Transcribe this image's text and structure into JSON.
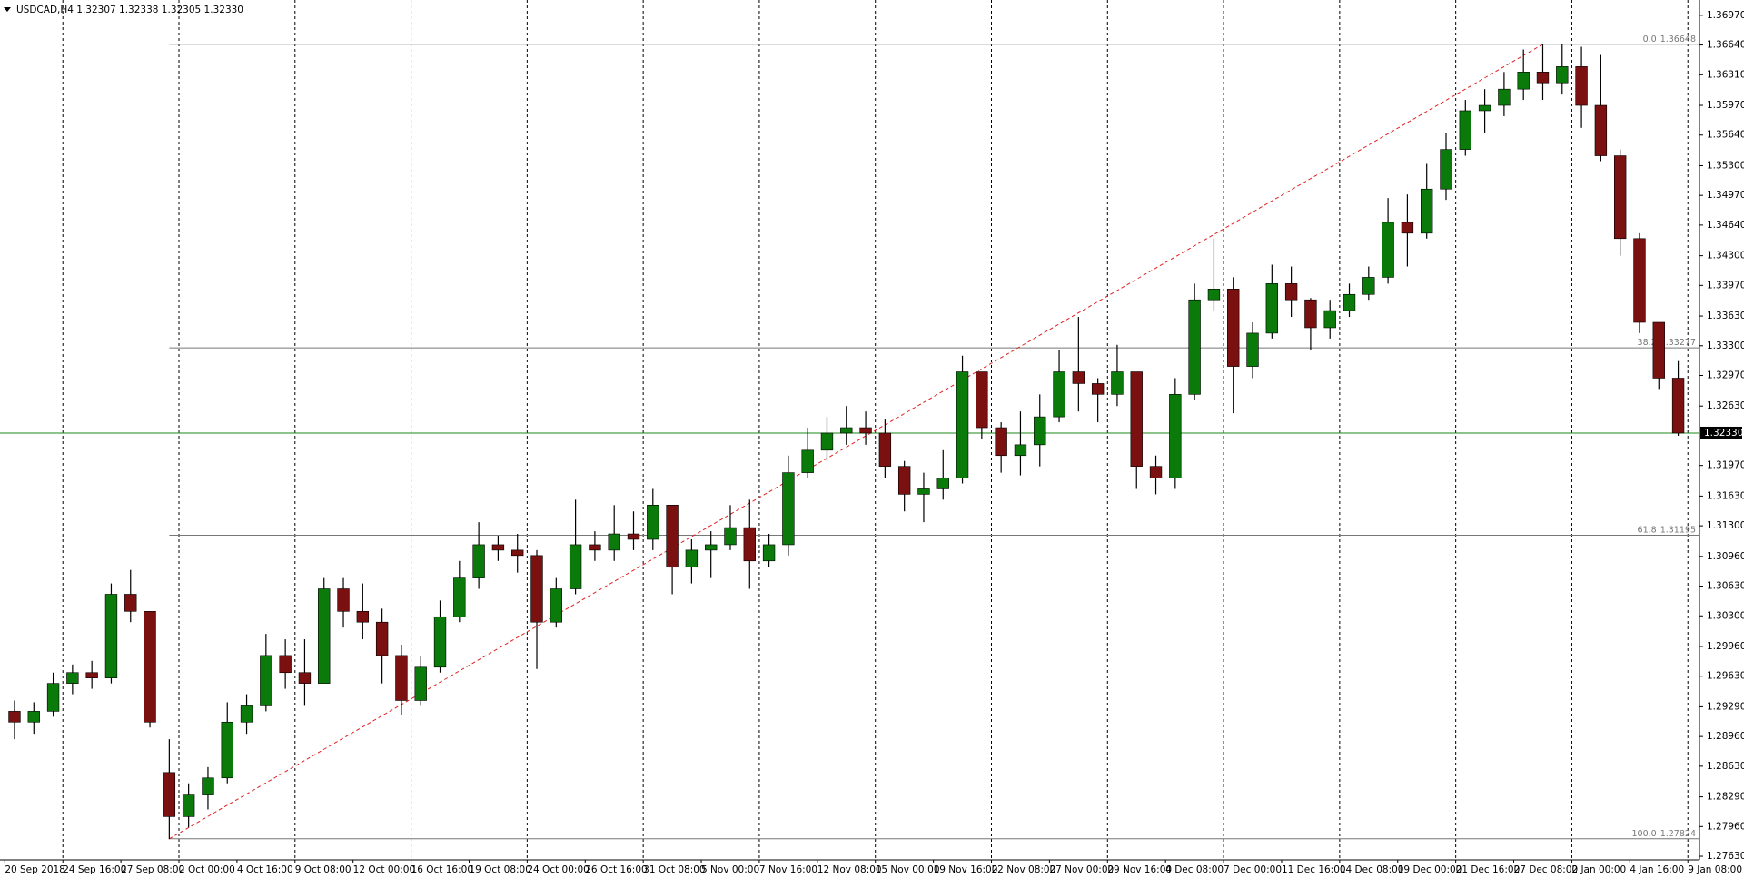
{
  "chart_data": {
    "type": "candlestick",
    "title": "USDCAD,H4  1.32307 1.32338 1.32305 1.32330",
    "xlim": [
      -0.25,
      87.6
    ],
    "xticks": [
      {
        "value": 0,
        "label": "20 Sep 2018"
      },
      {
        "value": 3,
        "label": "24 Sep 16:00"
      },
      {
        "value": 6,
        "label": "27 Sep 08:00"
      },
      {
        "value": 9,
        "label": "2 Oct 00:00"
      },
      {
        "value": 12,
        "label": "4 Oct 16:00"
      },
      {
        "value": 15,
        "label": "9 Oct 08:00"
      },
      {
        "value": 18,
        "label": "12 Oct 00:00"
      },
      {
        "value": 21,
        "label": "16 Oct 16:00"
      },
      {
        "value": 24,
        "label": "19 Oct 08:00"
      },
      {
        "value": 27,
        "label": "24 Oct 00:00"
      },
      {
        "value": 30,
        "label": "26 Oct 16:00"
      },
      {
        "value": 33,
        "label": "31 Oct 08:00"
      },
      {
        "value": 36,
        "label": "5 Nov 00:00"
      },
      {
        "value": 39,
        "label": "7 Nov 16:00"
      },
      {
        "value": 42,
        "label": "12 Nov 08:00"
      },
      {
        "value": 45,
        "label": "15 Nov 00:00"
      },
      {
        "value": 48,
        "label": "19 Nov 16:00"
      },
      {
        "value": 51,
        "label": "22 Nov 08:00"
      },
      {
        "value": 54,
        "label": "27 Nov 00:00"
      },
      {
        "value": 57,
        "label": "29 Nov 16:00"
      },
      {
        "value": 60,
        "label": "4 Dec 08:00"
      },
      {
        "value": 63,
        "label": "7 Dec 00:00"
      },
      {
        "value": 66,
        "label": "11 Dec 16:00"
      },
      {
        "value": 69,
        "label": "14 Dec 08:00"
      },
      {
        "value": 72,
        "label": "19 Dec 00:00"
      },
      {
        "value": 75,
        "label": "21 Dec 16:00"
      },
      {
        "value": 78,
        "label": "27 Dec 08:00"
      },
      {
        "value": 81,
        "label": "2 Jan 00:00"
      },
      {
        "value": 84,
        "label": "4 Jan 16:00"
      },
      {
        "value": 87,
        "label": "9 Jan 08:00"
      }
    ],
    "ylim": [
      1.2759,
      1.3714
    ],
    "yticks": [
      {
        "value": 1.3697,
        "label": "1.36970"
      },
      {
        "value": 1.3664,
        "label": "1.36640"
      },
      {
        "value": 1.3631,
        "label": "1.36310"
      },
      {
        "value": 1.3597,
        "label": "1.35970"
      },
      {
        "value": 1.3564,
        "label": "1.35640"
      },
      {
        "value": 1.353,
        "label": "1.35300"
      },
      {
        "value": 1.3497,
        "label": "1.34970"
      },
      {
        "value": 1.3464,
        "label": "1.34640"
      },
      {
        "value": 1.343,
        "label": "1.34300"
      },
      {
        "value": 1.3397,
        "label": "1.33970"
      },
      {
        "value": 1.3363,
        "label": "1.33630"
      },
      {
        "value": 1.333,
        "label": "1.33300"
      },
      {
        "value": 1.3297,
        "label": "1.32970"
      },
      {
        "value": 1.3263,
        "label": "1.32630"
      },
      {
        "value": 1.3197,
        "label": "1.31970"
      },
      {
        "value": 1.3163,
        "label": "1.31630"
      },
      {
        "value": 1.313,
        "label": "1.31300"
      },
      {
        "value": 1.3096,
        "label": "1.30960"
      },
      {
        "value": 1.3063,
        "label": "1.30630"
      },
      {
        "value": 1.303,
        "label": "1.30300"
      },
      {
        "value": 1.2996,
        "label": "1.29960"
      },
      {
        "value": 1.2963,
        "label": "1.29630"
      },
      {
        "value": 1.2929,
        "label": "1.29290"
      },
      {
        "value": 1.2896,
        "label": "1.28960"
      },
      {
        "value": 1.2863,
        "label": "1.28630"
      },
      {
        "value": 1.2829,
        "label": "1.28290"
      },
      {
        "value": 1.2796,
        "label": "1.27960"
      },
      {
        "value": 1.2763,
        "label": "1.27630"
      }
    ],
    "open": [
      1.2924,
      1.2912,
      1.2924,
      1.2955,
      1.2967,
      1.2961,
      1.3054,
      1.3035,
      1.2856,
      1.2807,
      1.2831,
      1.285,
      1.2912,
      1.293,
      1.2986,
      1.2967,
      1.2955,
      1.306,
      1.3035,
      1.3023,
      1.2986,
      1.2936,
      1.2973,
      1.3029,
      1.3072,
      1.3109,
      1.3103,
      1.3097,
      1.3023,
      1.306,
      1.3109,
      1.3103,
      1.3121,
      1.3115,
      1.3153,
      1.3084,
      1.3103,
      1.3109,
      1.3128,
      1.3091,
      1.3109,
      1.3189,
      1.3214,
      1.3233,
      1.3239,
      1.3233,
      1.3196,
      1.3165,
      1.3171,
      1.3183,
      1.3301,
      1.3239,
      1.3208,
      1.322,
      1.3251,
      1.3301,
      1.3288,
      1.3276,
      1.3301,
      1.3196,
      1.3183,
      1.3276,
      1.3381,
      1.3393,
      1.3307,
      1.3344,
      1.3399,
      1.3381,
      1.335,
      1.3369,
      1.3387,
      1.3406,
      1.3467,
      1.3455,
      1.3504,
      1.3548,
      1.3591,
      1.3597,
      1.3615,
      1.3634,
      1.3622,
      1.364,
      1.3597,
      1.3541,
      1.3449,
      1.3356,
      1.3294
    ],
    "high": [
      1.2936,
      1.2934,
      1.2967,
      1.2976,
      1.298,
      1.3066,
      1.3081,
      1.3035,
      1.2893,
      1.2844,
      1.2862,
      1.2934,
      1.2943,
      1.301,
      1.3004,
      1.3004,
      1.3072,
      1.3072,
      1.3066,
      1.3038,
      1.2998,
      1.2986,
      1.3047,
      1.3091,
      1.3134,
      1.3119,
      1.3121,
      1.3103,
      1.3072,
      1.3159,
      1.3124,
      1.3153,
      1.3146,
      1.3171,
      1.3153,
      1.3115,
      1.3124,
      1.3153,
      1.3159,
      1.3121,
      1.3208,
      1.3239,
      1.3251,
      1.3263,
      1.3257,
      1.3248,
      1.3202,
      1.3189,
      1.3214,
      1.3319,
      1.3301,
      1.3245,
      1.3257,
      1.3276,
      1.3325,
      1.3362,
      1.3294,
      1.3331,
      1.3301,
      1.3208,
      1.3294,
      1.3399,
      1.3449,
      1.3406,
      1.3356,
      1.342,
      1.3418,
      1.3383,
      1.3381,
      1.3399,
      1.3418,
      1.3494,
      1.3498,
      1.3532,
      1.3566,
      1.3603,
      1.3615,
      1.3634,
      1.3659,
      1.3665,
      1.3665,
      1.3662,
      1.3653,
      1.3548,
      1.3455,
      1.3356,
      1.3313
    ],
    "low": [
      1.2893,
      1.2899,
      1.2918,
      1.2943,
      1.2949,
      1.2955,
      1.3023,
      1.2906,
      1.2782,
      1.2795,
      1.2815,
      1.2844,
      1.2899,
      1.2924,
      1.2949,
      1.293,
      1.2955,
      1.3017,
      1.3004,
      1.2955,
      1.292,
      1.293,
      1.2967,
      1.3023,
      1.306,
      1.3091,
      1.3078,
      1.2971,
      1.3017,
      1.3054,
      1.3091,
      1.3091,
      1.3103,
      1.3103,
      1.3054,
      1.3066,
      1.3072,
      1.3103,
      1.306,
      1.3084,
      1.3097,
      1.3183,
      1.3202,
      1.322,
      1.322,
      1.3183,
      1.3146,
      1.3134,
      1.3159,
      1.3177,
      1.3226,
      1.3189,
      1.3186,
      1.3196,
      1.3245,
      1.3257,
      1.3245,
      1.3263,
      1.3171,
      1.3165,
      1.3171,
      1.327,
      1.3369,
      1.3255,
      1.3294,
      1.3338,
      1.3362,
      1.3325,
      1.3338,
      1.3362,
      1.3381,
      1.3399,
      1.3418,
      1.3449,
      1.3492,
      1.3541,
      1.3566,
      1.3585,
      1.3603,
      1.3603,
      1.3609,
      1.3572,
      1.3535,
      1.343,
      1.3344,
      1.3282,
      1.323
    ],
    "close": [
      1.2912,
      1.2924,
      1.2955,
      1.2967,
      1.2961,
      1.3054,
      1.3035,
      1.2912,
      1.2807,
      1.2831,
      1.285,
      1.2912,
      1.293,
      1.2986,
      1.2967,
      1.2955,
      1.306,
      1.3035,
      1.3023,
      1.2986,
      1.2936,
      1.2973,
      1.3029,
      1.3072,
      1.3109,
      1.3103,
      1.3097,
      1.3023,
      1.306,
      1.3109,
      1.3103,
      1.3121,
      1.3115,
      1.3153,
      1.3084,
      1.3103,
      1.3109,
      1.3128,
      1.3091,
      1.3109,
      1.3189,
      1.3214,
      1.3233,
      1.3239,
      1.3233,
      1.3196,
      1.3165,
      1.3171,
      1.3183,
      1.3301,
      1.3239,
      1.3208,
      1.322,
      1.3251,
      1.3301,
      1.3288,
      1.3276,
      1.3301,
      1.3196,
      1.3183,
      1.3276,
      1.3381,
      1.3393,
      1.3307,
      1.3344,
      1.3399,
      1.3381,
      1.335,
      1.3369,
      1.3387,
      1.3406,
      1.3467,
      1.3455,
      1.3504,
      1.3548,
      1.3591,
      1.3597,
      1.3615,
      1.3634,
      1.3622,
      1.364,
      1.3597,
      1.3541,
      1.3449,
      1.3356,
      1.3294,
      1.3233
    ],
    "up_color": "#0a7a0a",
    "down_color": "#7a1010",
    "wick_color": "#000000",
    "current_price": {
      "value": 1.3233,
      "label": "1.32330"
    },
    "current_price_color": "#1a8a1a",
    "fib_levels": [
      {
        "ratio": "0.0",
        "price": 1.36648
      },
      {
        "ratio": "38.2",
        "price": 1.33277
      },
      {
        "ratio": "61.8",
        "price": 1.31195
      },
      {
        "ratio": "100.0",
        "price": 1.27824
      }
    ],
    "fib_color": "#777777",
    "trendline_color": "#e02020"
  }
}
